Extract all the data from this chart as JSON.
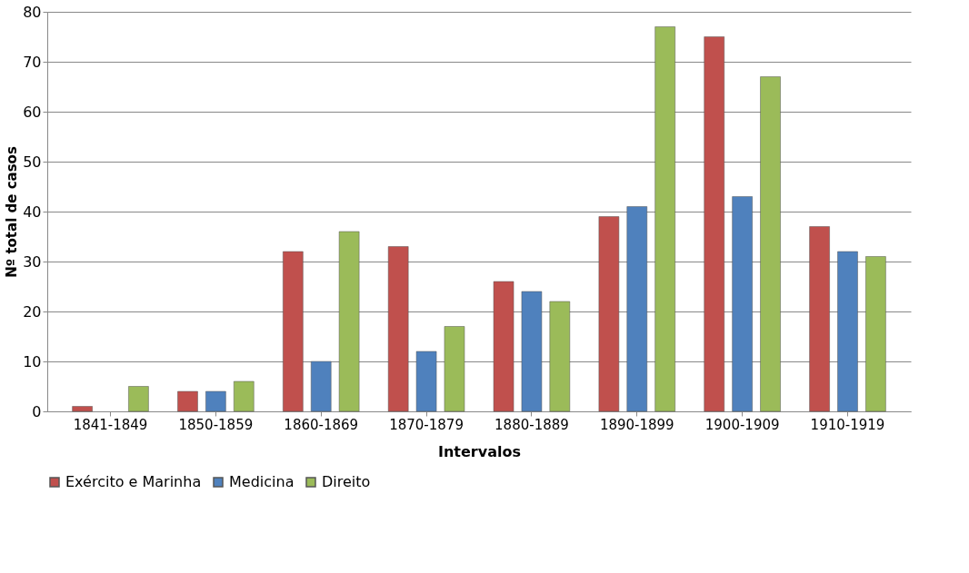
{
  "chart_data": {
    "type": "bar",
    "xlabel": "Intervalos",
    "ylabel": "Nº total de casos",
    "categories": [
      "1841-1849",
      "1850-1859",
      "1860-1869",
      "1870-1879",
      "1880-1889",
      "1890-1899",
      "1900-1909",
      "1910-1919"
    ],
    "series": [
      {
        "name": "Exército e Marinha",
        "color": "#c0504d",
        "values": [
          1,
          4,
          32,
          33,
          26,
          39,
          75,
          37
        ]
      },
      {
        "name": "Medicina",
        "color": "#4f81bd",
        "values": [
          null,
          4,
          10,
          12,
          24,
          41,
          43,
          32
        ]
      },
      {
        "name": "Direito",
        "color": "#9bbb59",
        "values": [
          5,
          6,
          36,
          17,
          22,
          77,
          67,
          31
        ]
      }
    ],
    "ylim": [
      0,
      80
    ],
    "yticks": [
      0,
      10,
      20,
      30,
      40,
      50,
      60,
      70,
      80
    ],
    "grid": "y",
    "legend": "bottom"
  }
}
